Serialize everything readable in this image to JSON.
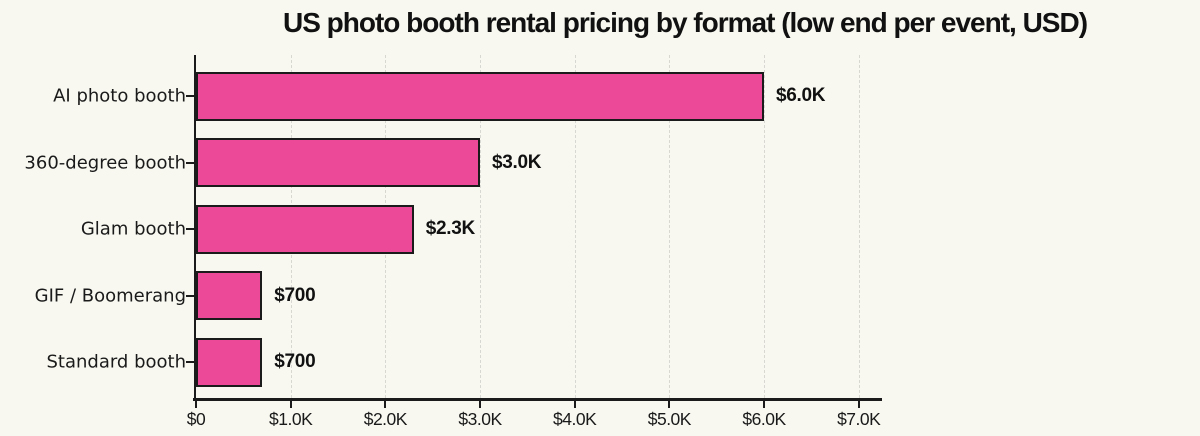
{
  "chart_data": {
    "type": "bar",
    "orientation": "horizontal",
    "title": "US photo booth rental pricing by format (low end per event, USD)",
    "categories": [
      "AI photo booth",
      "360-degree booth",
      "Glam booth",
      "GIF / Boomerang",
      "Standard booth"
    ],
    "values": [
      6000,
      3000,
      2300,
      700,
      700
    ],
    "value_labels": [
      "$6.0K",
      "$3.0K",
      "$2.3K",
      "$700",
      "$700"
    ],
    "xlabel": "",
    "ylabel": "",
    "x_ticks": {
      "values": [
        0,
        1000,
        2000,
        3000,
        4000,
        5000,
        6000,
        7000
      ],
      "labels": [
        "$0",
        "$1.0K",
        "$2.0K",
        "$3.0K",
        "$4.0K",
        "$5.0K",
        "$6.0K",
        "$7.0K"
      ]
    },
    "xlim": [
      0,
      7225
    ],
    "grid": {
      "vertical_dashed_at_ticks": true,
      "horizontal": false
    },
    "legend": "none",
    "colors": {
      "bar_fill": "#ec4998",
      "bar_edge": "#1b1b1b",
      "background": "#f8f8f1",
      "grid": "#d8d8d2",
      "axis": "#1b1b1b",
      "text": "#111111"
    }
  }
}
